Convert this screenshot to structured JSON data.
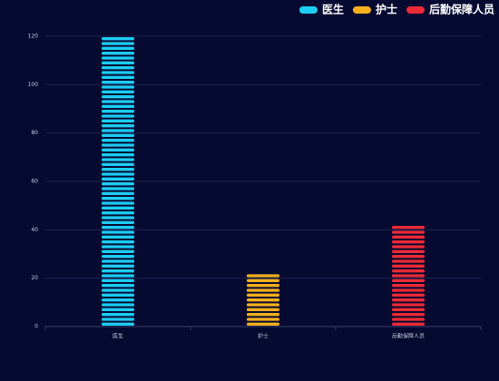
{
  "chart_data": {
    "type": "bar",
    "categories": [
      "医生",
      "护士",
      "后勤保障人员"
    ],
    "values": [
      120,
      21,
      41
    ],
    "colors": [
      "#1ccdf5",
      "#f5b01c",
      "#ec2a36"
    ],
    "ylim": [
      0,
      120
    ],
    "yticks": [
      0,
      20,
      40,
      60,
      80,
      100,
      120
    ],
    "grid": true,
    "legend": "top-right"
  }
}
